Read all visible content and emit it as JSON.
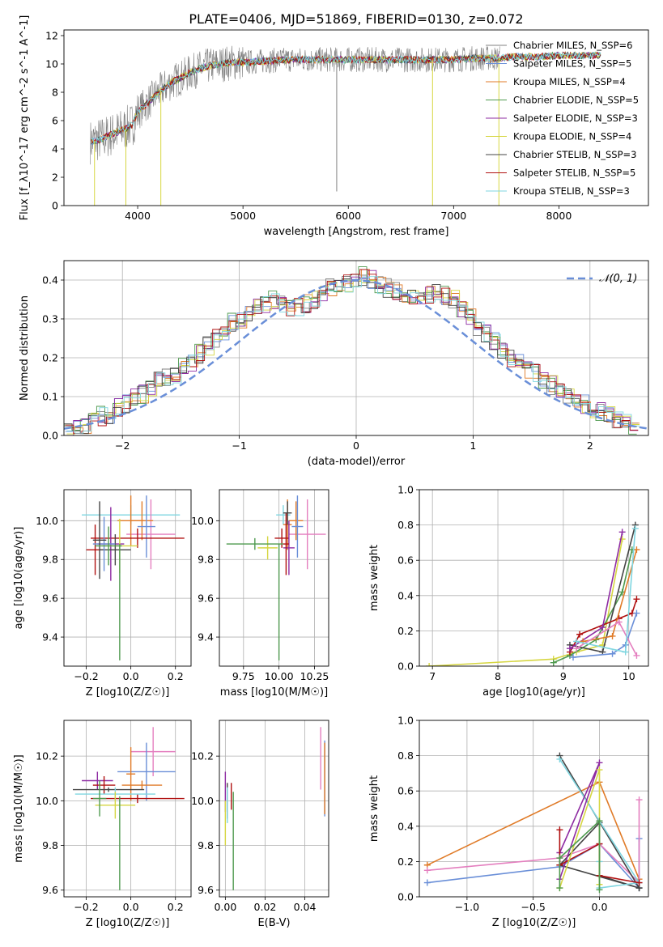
{
  "figure": {
    "title": "PLATE=0406, MJD=51869, FIBERID=0130, z=0.072"
  },
  "colors": {
    "chabrier_miles": "#808080",
    "salpeter_miles": "#6a8fd8",
    "kroupa_miles": "#e07b28",
    "chabrier_elodie": "#4f9a4f",
    "salpeter_elodie": "#8e2ba2",
    "kroupa_elodie": "#d6d642",
    "chabrier_stelib": "#444444",
    "salpeter_stelib": "#b01010",
    "kroupa_stelib": "#7fd6e0",
    "pink": "#e47fbf",
    "gaussian": "#6a8fd8"
  },
  "chart_data": [
    {
      "type": "line",
      "name": "spectrum",
      "xlabel": "wavelength [Angstrom, rest frame]",
      "ylabel": "Flux [f_λ10^-17 erg cm^-2 s^-1 A^-1]",
      "xlim": [
        3300,
        8850
      ],
      "ylim": [
        0,
        12.4
      ],
      "xticks": [
        4000,
        5000,
        6000,
        7000,
        8000
      ],
      "yticks": [
        0,
        2,
        4,
        6,
        8,
        10,
        12
      ],
      "grid": false,
      "legend_position": "right",
      "legend": [
        {
          "label": "Chabrier MILES, N_SSP=6",
          "color_key": "chabrier_miles"
        },
        {
          "label": "Salpeter MILES, N_SSP=5",
          "color_key": "salpeter_miles"
        },
        {
          "label": "Kroupa MILES, N_SSP=4",
          "color_key": "kroupa_miles"
        },
        {
          "label": "Chabrier ELODIE, N_SSP=5",
          "color_key": "chabrier_elodie"
        },
        {
          "label": "Salpeter ELODIE, N_SSP=3",
          "color_key": "salpeter_elodie"
        },
        {
          "label": "Kroupa ELODIE, N_SSP=4",
          "color_key": "kroupa_elodie"
        },
        {
          "label": "Chabrier STELIB, N_SSP=3",
          "color_key": "chabrier_stelib"
        },
        {
          "label": "Salpeter STELIB, N_SSP=5",
          "color_key": "salpeter_stelib"
        },
        {
          "label": "Kroupa STELIB, N_SSP=3",
          "color_key": "kroupa_stelib"
        }
      ],
      "continuum": {
        "x": [
          3550,
          3650,
          3750,
          3850,
          3950,
          4000,
          4100,
          4200,
          4300,
          4400,
          4500,
          4600,
          4700,
          4800,
          4900,
          5000,
          5200,
          5400,
          5600,
          5800,
          6000,
          6200,
          6400,
          6600,
          6800,
          7000,
          7200,
          7400,
          7600,
          7800,
          8000,
          8200,
          8400,
          8800
        ],
        "y": [
          4.5,
          4.7,
          5.0,
          5.3,
          5.7,
          6.6,
          7.3,
          8.0,
          8.6,
          9.0,
          9.4,
          9.7,
          9.9,
          10.0,
          10.1,
          10.1,
          10.2,
          10.3,
          10.3,
          10.3,
          10.3,
          10.3,
          10.3,
          10.3,
          10.3,
          10.3,
          10.4,
          10.4,
          10.5,
          10.5,
          10.6,
          10.6,
          10.6,
          10.6
        ]
      },
      "absorption_lines": [
        {
          "x": 3590,
          "depth_to": 0
        },
        {
          "x": 3888,
          "depth_to": 0
        },
        {
          "x": 4220,
          "depth_to": 0
        },
        {
          "x": 5890,
          "depth_to": 1.0
        },
        {
          "x": 6800,
          "depth_to": 0
        },
        {
          "x": 7430,
          "depth_to": 0
        }
      ]
    },
    {
      "type": "histogram",
      "name": "residuals",
      "xlabel": "(data-model)/error",
      "ylabel": "Normed distribution",
      "xlim": [
        -2.5,
        2.5
      ],
      "ylim": [
        0,
        0.45
      ],
      "xticks": [
        -2,
        -1,
        0,
        1,
        2
      ],
      "yticks": [
        0.0,
        0.1,
        0.2,
        0.3,
        0.4
      ],
      "grid": true,
      "legend_position": "top-right",
      "legend": [
        {
          "label": "𝒩(0, 1)",
          "style": "dashed",
          "color_key": "gaussian"
        }
      ],
      "bin_width": 0.1,
      "bin_range": [
        -2.5,
        2.5
      ],
      "base_series": [
        0.015,
        0.02,
        0.028,
        0.035,
        0.05,
        0.055,
        0.07,
        0.08,
        0.1,
        0.105,
        0.12,
        0.14,
        0.15,
        0.16,
        0.18,
        0.19,
        0.21,
        0.23,
        0.25,
        0.27,
        0.29,
        0.3,
        0.31,
        0.33,
        0.34,
        0.35,
        0.34,
        0.33,
        0.33,
        0.34,
        0.35,
        0.37,
        0.38,
        0.38,
        0.39,
        0.4,
        0.41,
        0.4,
        0.39,
        0.38,
        0.37,
        0.36,
        0.35,
        0.36,
        0.36,
        0.37,
        0.36,
        0.35,
        0.33,
        0.31,
        0.28,
        0.26,
        0.24,
        0.22,
        0.2,
        0.19,
        0.17,
        0.16,
        0.14,
        0.13,
        0.12,
        0.1,
        0.09,
        0.08,
        0.07,
        0.06,
        0.05,
        0.04,
        0.03,
        0.025,
        0.02
      ]
    },
    {
      "type": "errorbar",
      "name": "age-vs-Z",
      "xlabel": "Z [log10(Z/Z☉)]",
      "ylabel": "age  [log10(age/yr)]",
      "xlim": [
        -0.3,
        0.27
      ],
      "ylim": [
        9.25,
        10.16
      ],
      "xticks": [
        -0.2,
        0.0,
        0.2
      ],
      "yticks": [
        9.4,
        9.6,
        9.8,
        10.0
      ],
      "grid": true,
      "points": [
        {
          "x": 0.0,
          "y": 10.03,
          "xerr": 0.22,
          "yerr": 0.05,
          "color_key": "kroupa_stelib"
        },
        {
          "x": 0.09,
          "y": 9.93,
          "xerr": 0.11,
          "yerr": 0.18,
          "color_key": "pink"
        },
        {
          "x": 0.05,
          "y": 10.0,
          "xerr": 0.05,
          "yerr": 0.1,
          "color_key": "kroupa_miles"
        },
        {
          "x": 0.07,
          "y": 9.97,
          "xerr": 0.04,
          "yerr": 0.16,
          "color_key": "salpeter_miles"
        },
        {
          "x": 0.0,
          "y": 10.0,
          "xerr": 0.06,
          "yerr": 0.13,
          "color_key": "kroupa_miles"
        },
        {
          "x": 0.03,
          "y": 9.91,
          "xerr": 0.21,
          "yerr": 0.05,
          "color_key": "salpeter_stelib"
        },
        {
          "x": -0.09,
          "y": 9.88,
          "xerr": 0.06,
          "yerr": 0.19,
          "color_key": "salpeter_elodie"
        },
        {
          "x": -0.16,
          "y": 9.85,
          "xerr": 0.04,
          "yerr": 0.13,
          "color_key": "salpeter_stelib"
        },
        {
          "x": -0.05,
          "y": 9.87,
          "xerr": 0.08,
          "yerr": 0.14,
          "color_key": "kroupa_elodie"
        },
        {
          "x": -0.07,
          "y": 9.85,
          "xerr": 0.07,
          "yerr": 0.08,
          "color_key": "chabrier_stelib"
        },
        {
          "x": -0.12,
          "y": 9.88,
          "xerr": 0.05,
          "yerr": 0.14,
          "color_key": "salpeter_miles"
        },
        {
          "x": -0.14,
          "y": 9.9,
          "xerr": 0.03,
          "yerr": 0.2,
          "color_key": "chabrier_stelib"
        },
        {
          "x": -0.1,
          "y": 9.87,
          "xerr": 0.06,
          "yerr": 0.1,
          "color_key": "chabrier_elodie"
        },
        {
          "x": -0.05,
          "y": 9.58,
          "xerr": 0.0,
          "yerr": 0.3,
          "color_key": "chabrier_elodie"
        }
      ]
    },
    {
      "type": "errorbar",
      "name": "age-vs-mass",
      "xlabel": "mass [log10(M/M☉)]",
      "ylabel": "",
      "xlim": [
        9.58,
        10.35
      ],
      "ylim": [
        9.25,
        10.16
      ],
      "xticks": [
        9.75,
        10.0,
        10.25
      ],
      "yticks": [
        9.4,
        9.6,
        9.8,
        10.0
      ],
      "grid": true,
      "points": [
        {
          "x": 10.03,
          "y": 10.03,
          "xerr": 0.05,
          "yerr": 0.05,
          "color_key": "kroupa_stelib"
        },
        {
          "x": 10.2,
          "y": 9.93,
          "xerr": 0.13,
          "yerr": 0.18,
          "color_key": "pink"
        },
        {
          "x": 10.12,
          "y": 10.0,
          "xerr": 0.05,
          "yerr": 0.1,
          "color_key": "kroupa_miles"
        },
        {
          "x": 10.13,
          "y": 9.97,
          "xerr": 0.04,
          "yerr": 0.16,
          "color_key": "salpeter_miles"
        },
        {
          "x": 10.06,
          "y": 9.98,
          "xerr": 0.03,
          "yerr": 0.13,
          "color_key": "kroupa_miles"
        },
        {
          "x": 10.02,
          "y": 9.91,
          "xerr": 0.05,
          "yerr": 0.05,
          "color_key": "salpeter_stelib"
        },
        {
          "x": 10.07,
          "y": 9.86,
          "xerr": 0.04,
          "yerr": 0.14,
          "color_key": "salpeter_elodie"
        },
        {
          "x": 10.05,
          "y": 9.88,
          "xerr": 0.02,
          "yerr": 0.16,
          "color_key": "salpeter_stelib"
        },
        {
          "x": 9.92,
          "y": 9.86,
          "xerr": 0.07,
          "yerr": 0.06,
          "color_key": "kroupa_elodie"
        },
        {
          "x": 9.83,
          "y": 9.88,
          "xerr": 0.2,
          "yerr": 0.03,
          "color_key": "chabrier_elodie"
        },
        {
          "x": 10.0,
          "y": 9.58,
          "xerr": 0.0,
          "yerr": 0.3,
          "color_key": "chabrier_elodie"
        },
        {
          "x": 10.06,
          "y": 10.04,
          "xerr": 0.03,
          "yerr": 0.06,
          "color_key": "chabrier_stelib"
        }
      ]
    },
    {
      "type": "line",
      "name": "mass-weight-vs-age",
      "xlabel": "age  [log10(age/yr)]",
      "ylabel": "mass weight",
      "xlim": [
        6.8,
        10.3
      ],
      "ylim": [
        0,
        1.0
      ],
      "xticks": [
        7,
        8,
        9,
        10
      ],
      "yticks": [
        0.0,
        0.2,
        0.4,
        0.6,
        0.8,
        1.0
      ],
      "grid": true,
      "series": [
        {
          "color_key": "kroupa_elodie",
          "x": [
            6.95,
            8.85,
            9.2,
            9.6,
            9.9
          ],
          "y": [
            0.0,
            0.04,
            0.08,
            0.12,
            0.72
          ]
        },
        {
          "color_key": "chabrier_elodie",
          "x": [
            8.85,
            9.1,
            9.5,
            9.9,
            10.05
          ],
          "y": [
            0.02,
            0.06,
            0.15,
            0.42,
            0.66
          ]
        },
        {
          "color_key": "chabrier_stelib",
          "x": [
            9.1,
            9.6,
            10.1
          ],
          "y": [
            0.12,
            0.08,
            0.8
          ]
        },
        {
          "color_key": "salpeter_stelib",
          "x": [
            9.1,
            9.25,
            9.85,
            10.05,
            10.12
          ],
          "y": [
            0.08,
            0.18,
            0.27,
            0.3,
            0.38
          ]
        },
        {
          "color_key": "salpeter_elodie",
          "x": [
            9.1,
            9.6,
            9.9
          ],
          "y": [
            0.1,
            0.22,
            0.76
          ]
        },
        {
          "color_key": "kroupa_miles",
          "x": [
            9.3,
            9.75,
            10.12
          ],
          "y": [
            0.14,
            0.17,
            0.66
          ]
        },
        {
          "color_key": "salpeter_miles",
          "x": [
            9.15,
            9.75,
            9.95,
            10.12
          ],
          "y": [
            0.05,
            0.07,
            0.12,
            0.3
          ]
        },
        {
          "color_key": "pink",
          "x": [
            9.2,
            9.85,
            10.12
          ],
          "y": [
            0.1,
            0.25,
            0.06
          ]
        },
        {
          "color_key": "kroupa_stelib",
          "x": [
            9.2,
            9.95,
            10.1
          ],
          "y": [
            0.14,
            0.08,
            0.78
          ]
        }
      ]
    },
    {
      "type": "errorbar",
      "name": "mass-vs-Z",
      "xlabel": "Z [log10(Z/Z☉)]",
      "ylabel": "mass [log10(M/M☉)]",
      "xlim": [
        -0.3,
        0.27
      ],
      "ylim": [
        9.57,
        10.36
      ],
      "xticks": [
        -0.2,
        0.0,
        0.2
      ],
      "yticks": [
        9.6,
        9.8,
        10.0,
        10.2
      ],
      "grid": true,
      "points": [
        {
          "x": 0.1,
          "y": 10.22,
          "xerr": 0.1,
          "yerr": 0.11,
          "color_key": "pink"
        },
        {
          "x": 0.07,
          "y": 10.13,
          "xerr": 0.13,
          "yerr": 0.13,
          "color_key": "salpeter_miles"
        },
        {
          "x": 0.0,
          "y": 10.12,
          "xerr": 0.02,
          "yerr": 0.12,
          "color_key": "kroupa_miles"
        },
        {
          "x": 0.05,
          "y": 10.07,
          "xerr": 0.09,
          "yerr": 0.02,
          "color_key": "kroupa_miles"
        },
        {
          "x": -0.15,
          "y": 10.09,
          "xerr": 0.07,
          "yerr": 0.04,
          "color_key": "salpeter_elodie"
        },
        {
          "x": -0.12,
          "y": 10.07,
          "xerr": 0.05,
          "yerr": 0.04,
          "color_key": "salpeter_stelib"
        },
        {
          "x": 0.03,
          "y": 10.01,
          "xerr": 0.21,
          "yerr": 0.02,
          "color_key": "salpeter_stelib"
        },
        {
          "x": -0.1,
          "y": 10.05,
          "xerr": 0.16,
          "yerr": 0.01,
          "color_key": "chabrier_stelib"
        },
        {
          "x": -0.07,
          "y": 10.03,
          "xerr": 0.18,
          "yerr": 0.03,
          "color_key": "kroupa_stelib"
        },
        {
          "x": -0.07,
          "y": 9.98,
          "xerr": 0.09,
          "yerr": 0.06,
          "color_key": "kroupa_elodie"
        },
        {
          "x": -0.14,
          "y": 10.01,
          "xerr": 0.03,
          "yerr": 0.08,
          "color_key": "chabrier_elodie"
        },
        {
          "x": -0.05,
          "y": 9.81,
          "xerr": 0.0,
          "yerr": 0.21,
          "color_key": "chabrier_elodie"
        }
      ]
    },
    {
      "type": "errorbar",
      "name": "mass-vs-ebv",
      "xlabel": "E(B-V)",
      "ylabel": "",
      "xlim": [
        -0.003,
        0.052
      ],
      "ylim": [
        9.57,
        10.36
      ],
      "xticks": [
        0.0,
        0.02,
        0.04
      ],
      "yticks": [
        9.6,
        9.8,
        10.0,
        10.2
      ],
      "grid": true,
      "points": [
        {
          "x": 0.048,
          "y": 10.19,
          "xerr": 0.0,
          "yerr": 0.14,
          "color_key": "pink"
        },
        {
          "x": 0.05,
          "y": 10.1,
          "xerr": 0.0,
          "yerr": 0.17,
          "color_key": "salpeter_miles"
        },
        {
          "x": 0.05,
          "y": 10.1,
          "xerr": 0.0,
          "yerr": 0.16,
          "color_key": "kroupa_miles"
        },
        {
          "x": 0.0,
          "y": 10.04,
          "xerr": 0.0,
          "yerr": 0.09,
          "color_key": "salpeter_elodie"
        },
        {
          "x": 0.003,
          "y": 10.02,
          "xerr": 0.0,
          "yerr": 0.06,
          "color_key": "salpeter_stelib"
        },
        {
          "x": 0.001,
          "y": 10.0,
          "xerr": 0.0,
          "yerr": 0.08,
          "color_key": "chabrier_stelib"
        },
        {
          "x": 0.0,
          "y": 9.9,
          "xerr": 0.0,
          "yerr": 0.1,
          "color_key": "kroupa_elodie"
        },
        {
          "x": 0.001,
          "y": 9.98,
          "xerr": 0.0,
          "yerr": 0.08,
          "color_key": "kroupa_stelib"
        },
        {
          "x": 0.004,
          "y": 9.82,
          "xerr": 0.0,
          "yerr": 0.22,
          "color_key": "chabrier_elodie"
        }
      ]
    },
    {
      "type": "line",
      "name": "mass-weight-vs-Z",
      "xlabel": "Z [log10(Z/Z☉)]",
      "ylabel": "mass weight",
      "xlim": [
        -1.36,
        0.37
      ],
      "ylim": [
        0,
        1.0
      ],
      "xticks": [
        -1.0,
        -0.5,
        0.0
      ],
      "yticks": [
        0.0,
        0.2,
        0.4,
        0.6,
        0.8,
        1.0
      ],
      "grid": true,
      "series": [
        {
          "color_key": "kroupa_miles",
          "x": [
            -1.3,
            0.0,
            0.3
          ],
          "y": [
            0.18,
            0.65,
            0.1
          ]
        },
        {
          "color_key": "salpeter_miles",
          "x": [
            -1.3,
            -0.3,
            0.0,
            0.3,
            0.3
          ],
          "y": [
            0.08,
            0.17,
            0.3,
            0.05,
            0.33
          ]
        },
        {
          "color_key": "pink",
          "x": [
            -1.3,
            -0.3,
            0.0,
            0.3,
            0.3
          ],
          "y": [
            0.15,
            0.22,
            0.3,
            0.08,
            0.55
          ]
        },
        {
          "color_key": "chabrier_stelib",
          "x": [
            -0.3,
            0.3,
            -0.3,
            0.0,
            0.0,
            0.3
          ],
          "y": [
            0.8,
            0.05,
            0.18,
            0.42,
            0.12,
            0.05
          ]
        },
        {
          "color_key": "kroupa_stelib",
          "x": [
            -0.3,
            0.3,
            0.0,
            0.0
          ],
          "y": [
            0.78,
            0.08,
            0.05,
            0.2
          ]
        },
        {
          "color_key": "salpeter_elodie",
          "x": [
            -0.3,
            0.0,
            -0.3
          ],
          "y": [
            0.1,
            0.76,
            0.25
          ]
        },
        {
          "color_key": "salpeter_stelib",
          "x": [
            -0.3,
            -0.3,
            0.0,
            0.0,
            0.3
          ],
          "y": [
            0.38,
            0.18,
            0.3,
            0.12,
            0.08
          ]
        },
        {
          "color_key": "kroupa_elodie",
          "x": [
            -0.3,
            0.0,
            0.0
          ],
          "y": [
            0.05,
            0.72,
            0.07
          ]
        },
        {
          "color_key": "chabrier_elodie",
          "x": [
            -0.3,
            -0.3,
            0.0,
            0.0
          ],
          "y": [
            0.05,
            0.22,
            0.43,
            0.04
          ]
        }
      ]
    }
  ]
}
